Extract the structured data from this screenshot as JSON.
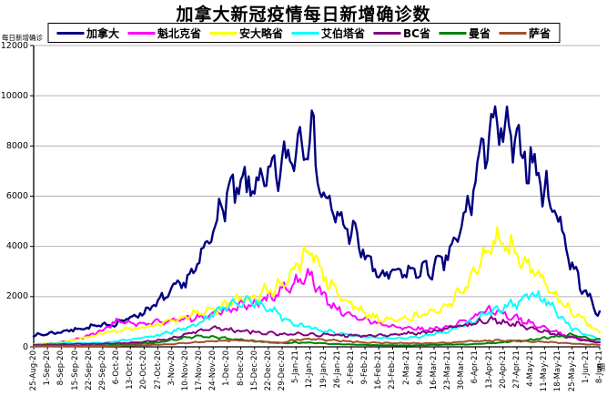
{
  "title": "加拿大新冠疫情每日新增确诊数",
  "colors": {
    "background": "#ffffff",
    "grid": "#b3b3b3",
    "axis": "#000000",
    "legend_border": "#000000"
  },
  "y_axis": {
    "title": "每日新增确诊",
    "tick_labels": [
      "0",
      "2000",
      "4000",
      "6000",
      "8000",
      "10000",
      "12000"
    ],
    "min": 0,
    "max": 12000,
    "step": 2000
  },
  "x_axis": {
    "title": "期",
    "labels": [
      "25-Aug-20",
      "1-Sep-20",
      "8-Sep-20",
      "15-Sep-20",
      "22-Sep-20",
      "29-Sep-20",
      "6-Oct-20",
      "13-Oct-20",
      "20-Oct-20",
      "27-Oct-20",
      "3-Nov-20",
      "10-Nov-20",
      "17-Nov-20",
      "24-Nov-20",
      "1-Dec-20",
      "8-Dec-20",
      "15-Dec-20",
      "22-Dec-20",
      "29-Dec-20",
      "5-Jan-21",
      "12-Jan-21",
      "19-Jan-21",
      "26-Jan-21",
      "2-Feb-21",
      "9-Feb-21",
      "16-Feb-21",
      "23-Feb-21",
      "2-Mar-21",
      "9-Mar-21",
      "16-Mar-21",
      "23-Mar-21",
      "30-Mar-21",
      "6-Apr-21",
      "13-Apr-21",
      "20-Apr-21",
      "27-Apr-21",
      "4-May-21",
      "11-May-21",
      "18-May-21",
      "25-May-21",
      "1-Jun-21",
      "8-Jun-21"
    ]
  },
  "legend": {
    "items": [
      {
        "label": "加拿大",
        "color": "#000080"
      },
      {
        "label": "魁北克省",
        "color": "#ff00ff"
      },
      {
        "label": "安大略省",
        "color": "#ffff00"
      },
      {
        "label": "艾伯塔省",
        "color": "#00ffff"
      },
      {
        "label": "BC省",
        "color": "#800080"
      },
      {
        "label": "曼省",
        "color": "#008000"
      },
      {
        "label": "萨省",
        "color": "#a0522d"
      }
    ]
  },
  "chart_data": {
    "type": "line",
    "title": "加拿大新冠疫情每日新增确诊数",
    "xlabel": "期",
    "ylabel": "每日新增确诊",
    "ylim": [
      0,
      12000
    ],
    "grid": true,
    "legend_position": "top",
    "x": [
      "25-Aug-20",
      "1-Sep-20",
      "8-Sep-20",
      "15-Sep-20",
      "22-Sep-20",
      "29-Sep-20",
      "6-Oct-20",
      "13-Oct-20",
      "20-Oct-20",
      "27-Oct-20",
      "3-Nov-20",
      "10-Nov-20",
      "17-Nov-20",
      "24-Nov-20",
      "1-Dec-20",
      "8-Dec-20",
      "15-Dec-20",
      "22-Dec-20",
      "29-Dec-20",
      "5-Jan-21",
      "12-Jan-21",
      "19-Jan-21",
      "26-Jan-21",
      "2-Feb-21",
      "9-Feb-21",
      "16-Feb-21",
      "23-Feb-21",
      "2-Mar-21",
      "9-Mar-21",
      "16-Mar-21",
      "23-Mar-21",
      "30-Mar-21",
      "6-Apr-21",
      "13-Apr-21",
      "20-Apr-21",
      "27-Apr-21",
      "4-May-21",
      "11-May-21",
      "18-May-21",
      "25-May-21",
      "1-Jun-21",
      "8-Jun-21"
    ],
    "series": [
      {
        "name": "加拿大",
        "color": "#000080",
        "stroke_width": 2.4,
        "values": [
          450,
          520,
          600,
          700,
          780,
          850,
          950,
          1150,
          1400,
          1750,
          2200,
          2600,
          3300,
          4800,
          6000,
          6300,
          6500,
          6600,
          7200,
          8000,
          8800,
          5900,
          5100,
          4650,
          3650,
          2800,
          2900,
          2950,
          3050,
          3100,
          3600,
          4700,
          6600,
          8800,
          8500,
          8000,
          7400,
          6300,
          5200,
          3200,
          2100,
          1300
        ]
      },
      {
        "name": "魁北克省",
        "color": "#ff00ff",
        "stroke_width": 2,
        "values": [
          90,
          130,
          180,
          280,
          450,
          650,
          1050,
          950,
          900,
          1000,
          1050,
          1150,
          1200,
          1300,
          1400,
          1600,
          1700,
          1900,
          2300,
          2600,
          2800,
          2000,
          1500,
          1250,
          1050,
          900,
          800,
          750,
          700,
          700,
          800,
          950,
          1250,
          1500,
          1350,
          1150,
          950,
          750,
          550,
          400,
          280,
          180
        ]
      },
      {
        "name": "安大略省",
        "color": "#ffff00",
        "stroke_width": 2,
        "values": [
          110,
          130,
          170,
          280,
          400,
          550,
          620,
          700,
          780,
          880,
          1000,
          1250,
          1400,
          1450,
          1700,
          1850,
          2000,
          2250,
          2400,
          3300,
          3800,
          2900,
          2200,
          1700,
          1350,
          1100,
          1080,
          1100,
          1250,
          1450,
          1650,
          2200,
          3000,
          4100,
          4300,
          3800,
          3100,
          2500,
          1900,
          1400,
          1000,
          600
        ]
      },
      {
        "name": "艾伯塔省",
        "color": "#00ffff",
        "stroke_width": 2,
        "values": [
          100,
          120,
          140,
          145,
          150,
          160,
          230,
          280,
          380,
          470,
          600,
          750,
          950,
          1300,
          1650,
          1750,
          1800,
          1500,
          1200,
          900,
          800,
          650,
          550,
          450,
          400,
          350,
          340,
          350,
          400,
          500,
          650,
          850,
          1050,
          1350,
          1550,
          1750,
          2100,
          1900,
          1300,
          750,
          480,
          300
        ]
      },
      {
        "name": "BC省",
        "color": "#800080",
        "stroke_width": 2,
        "values": [
          70,
          90,
          100,
          110,
          110,
          120,
          140,
          160,
          200,
          260,
          350,
          500,
          650,
          720,
          680,
          640,
          600,
          550,
          500,
          520,
          500,
          480,
          460,
          450,
          440,
          450,
          480,
          520,
          550,
          620,
          720,
          850,
          950,
          1100,
          1000,
          900,
          750,
          600,
          480,
          370,
          250,
          160
        ]
      },
      {
        "name": "曼省",
        "color": "#008000",
        "stroke_width": 2,
        "values": [
          40,
          50,
          45,
          40,
          40,
          50,
          70,
          100,
          140,
          170,
          280,
          380,
          420,
          380,
          330,
          280,
          230,
          180,
          150,
          170,
          160,
          140,
          110,
          90,
          75,
          65,
          60,
          55,
          65,
          75,
          85,
          95,
          110,
          140,
          180,
          230,
          280,
          350,
          420,
          480,
          350,
          280
        ]
      },
      {
        "name": "萨省",
        "color": "#a0522d",
        "stroke_width": 2,
        "values": [
          15,
          20,
          20,
          20,
          25,
          30,
          40,
          55,
          70,
          85,
          110,
          150,
          190,
          230,
          260,
          250,
          230,
          190,
          170,
          280,
          310,
          280,
          250,
          210,
          180,
          160,
          150,
          145,
          140,
          150,
          160,
          200,
          230,
          250,
          250,
          230,
          220,
          200,
          160,
          130,
          100,
          80
        ]
      }
    ],
    "render_hints": {
      "daily_points_per_week": 7,
      "weekly_wave": 0.07,
      "random_jitter": 0.09,
      "seed": 7
    }
  }
}
